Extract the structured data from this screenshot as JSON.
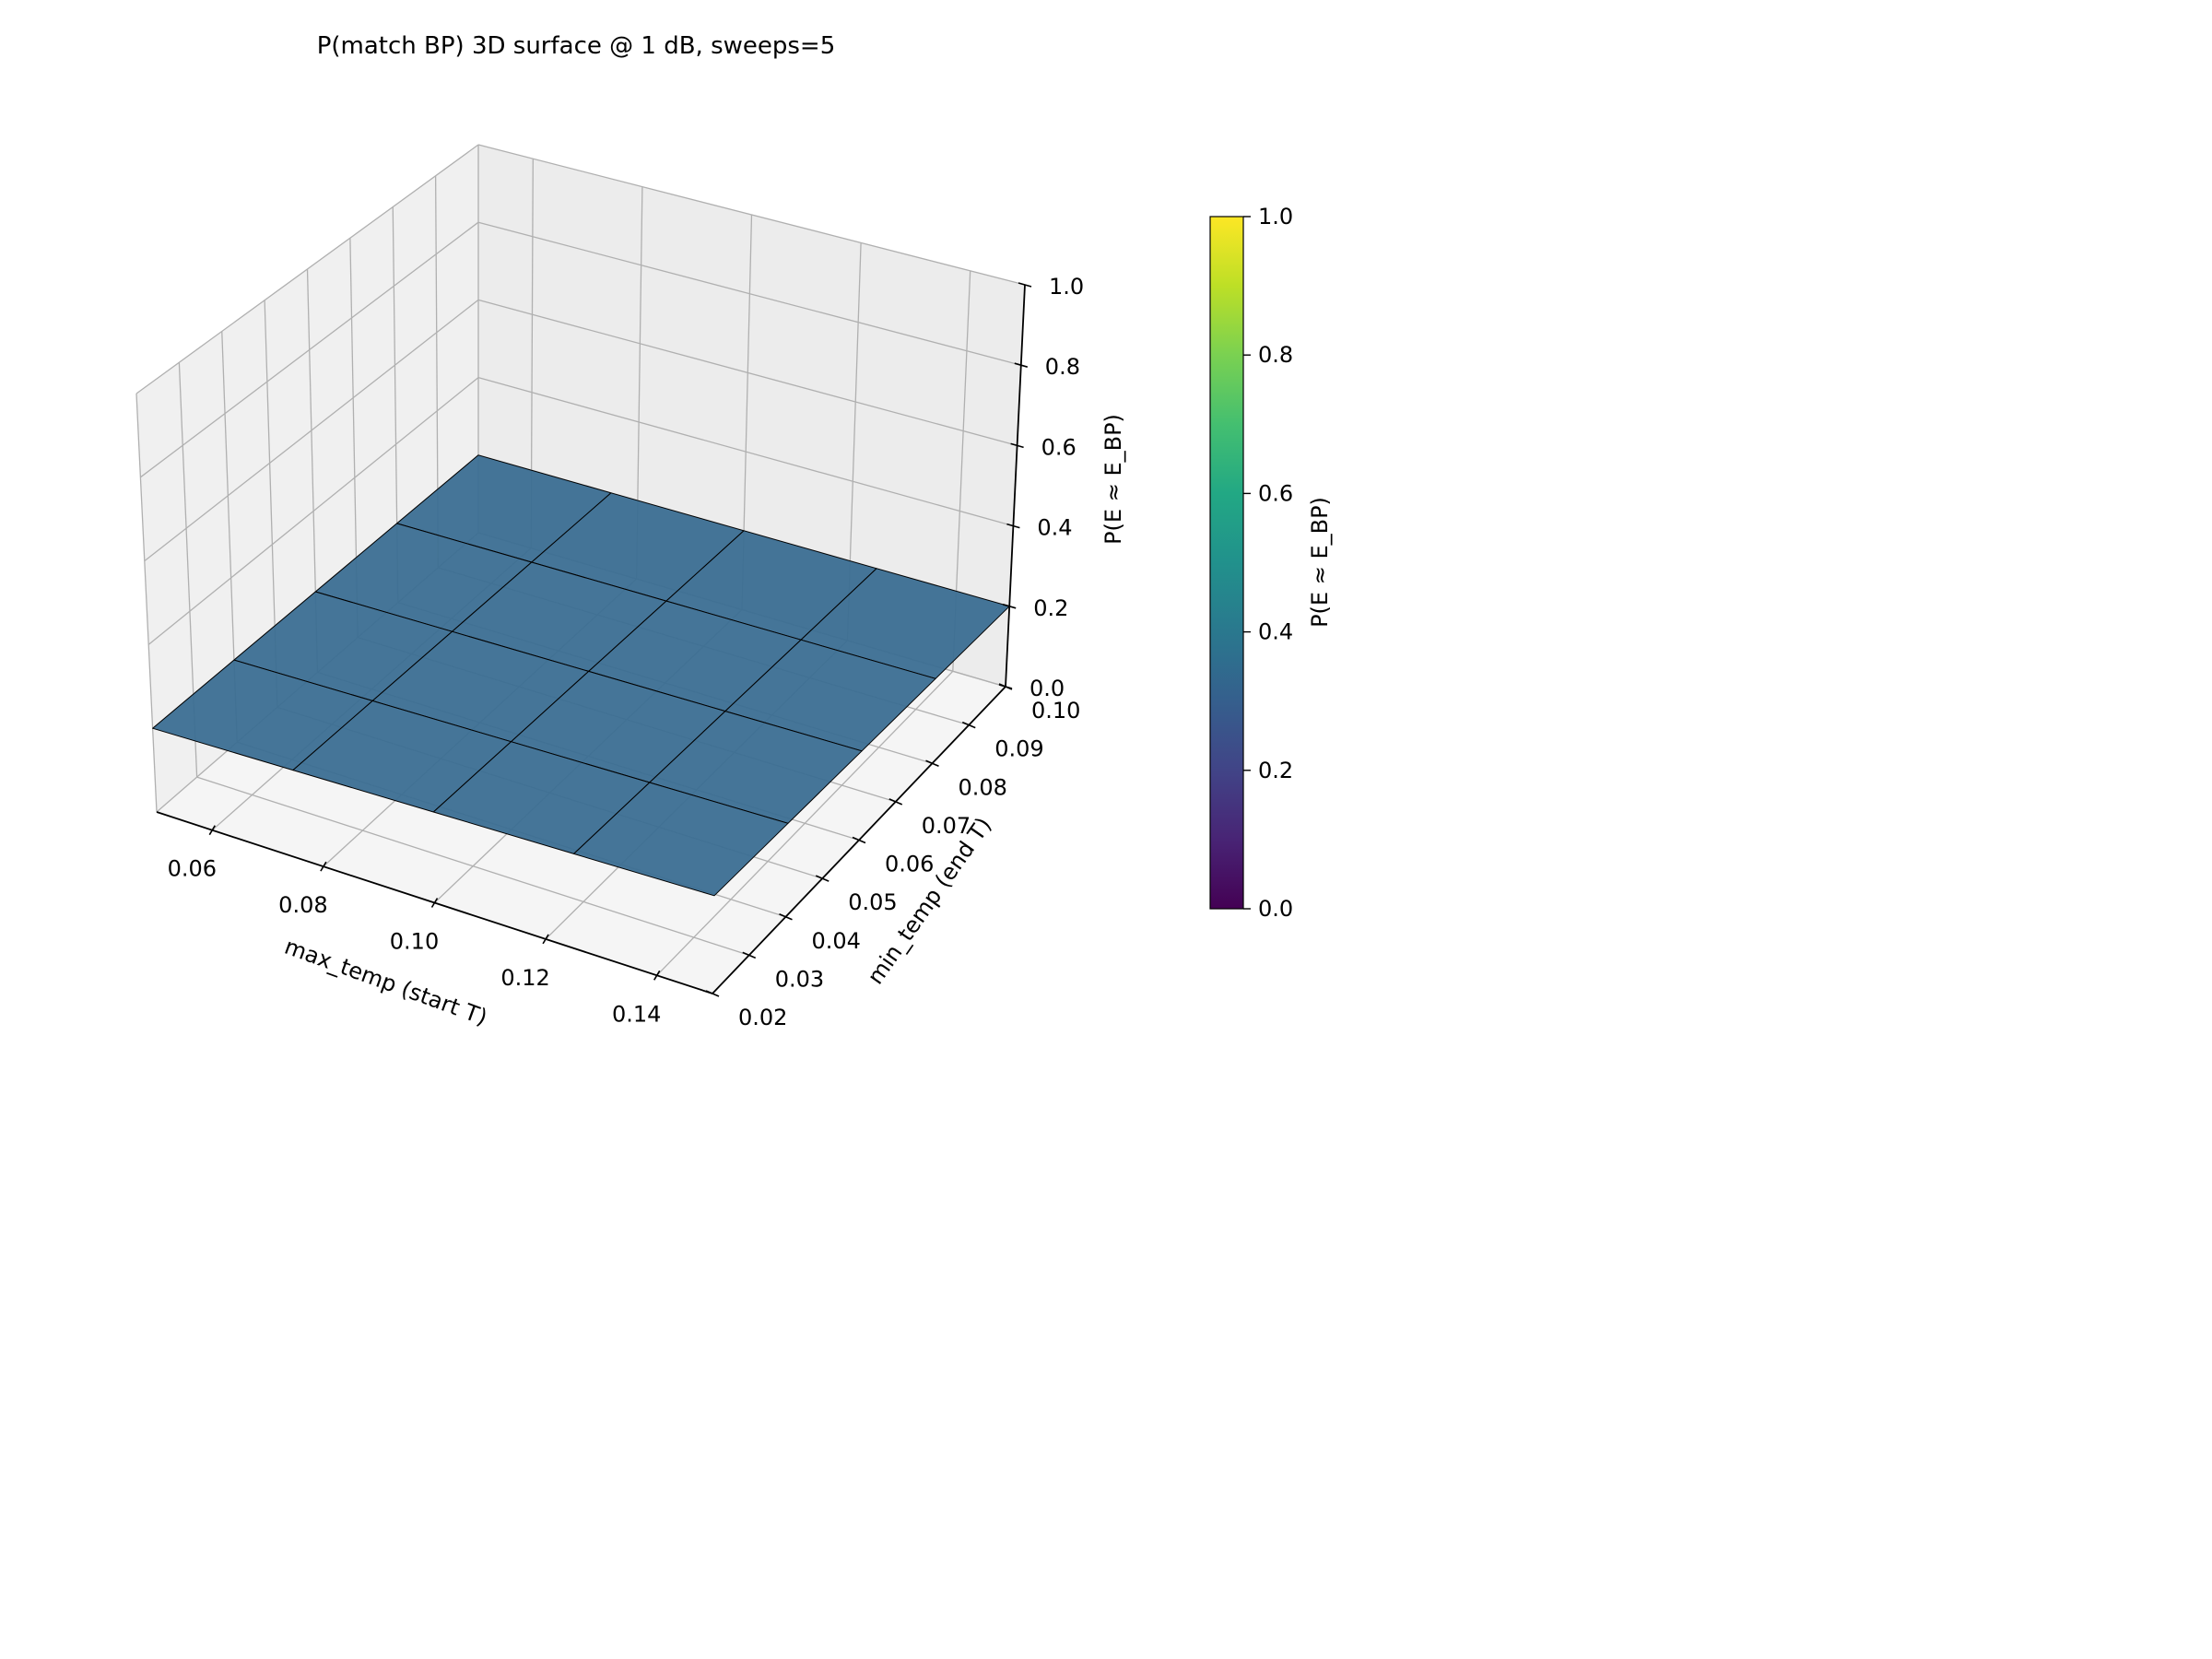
{
  "chart_data": {
    "type": "surface3d",
    "title": "P(match BP) 3D surface @ 1 dB, sweeps=5",
    "x_label": "max_temp (start T)",
    "y_label": "min_temp (end T)",
    "z_label": "P(E ≈ E_BP)",
    "x_ticks": [
      "0.06",
      "0.08",
      "0.10",
      "0.12",
      "0.14"
    ],
    "y_ticks": [
      "0.02",
      "0.03",
      "0.04",
      "0.05",
      "0.06",
      "0.07",
      "0.08",
      "0.09",
      "0.10"
    ],
    "z_ticks": [
      "0.0",
      "0.2",
      "0.4",
      "0.6",
      "0.8",
      "1.0"
    ],
    "xlim": [
      0.05,
      0.15
    ],
    "ylim": [
      0.02,
      0.1
    ],
    "zlim": [
      0.0,
      1.0
    ],
    "x": [
      0.05,
      0.075,
      0.1,
      0.125,
      0.15
    ],
    "y": [
      0.02,
      0.04,
      0.06,
      0.08,
      0.1
    ],
    "z": [
      [
        0.2,
        0.2,
        0.2,
        0.2,
        0.2
      ],
      [
        0.2,
        0.2,
        0.2,
        0.2,
        0.2
      ],
      [
        0.2,
        0.2,
        0.2,
        0.2,
        0.2
      ],
      [
        0.2,
        0.2,
        0.2,
        0.2,
        0.2
      ],
      [
        0.2,
        0.2,
        0.2,
        0.2,
        0.2
      ]
    ],
    "colormap": "viridis",
    "surface_color": "#3b6e92",
    "colorbar": {
      "label": "P(E ≈ E_BP)",
      "ticks": [
        "0.0",
        "0.2",
        "0.4",
        "0.6",
        "0.8",
        "1.0"
      ],
      "range": [
        0.0,
        1.0
      ]
    }
  }
}
